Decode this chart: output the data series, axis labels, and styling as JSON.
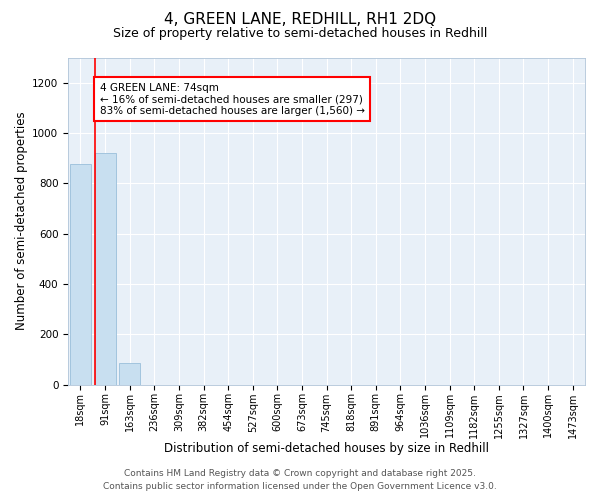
{
  "title": "4, GREEN LANE, REDHILL, RH1 2DQ",
  "subtitle": "Size of property relative to semi-detached houses in Redhill",
  "xlabel": "Distribution of semi-detached houses by size in Redhill",
  "ylabel": "Number of semi-detached properties",
  "categories": [
    "18sqm",
    "91sqm",
    "163sqm",
    "236sqm",
    "309sqm",
    "382sqm",
    "454sqm",
    "527sqm",
    "600sqm",
    "673sqm",
    "745sqm",
    "818sqm",
    "891sqm",
    "964sqm",
    "1036sqm",
    "1109sqm",
    "1182sqm",
    "1255sqm",
    "1327sqm",
    "1400sqm",
    "1473sqm"
  ],
  "values": [
    875,
    920,
    85,
    0,
    0,
    0,
    0,
    0,
    0,
    0,
    0,
    0,
    0,
    0,
    0,
    0,
    0,
    0,
    0,
    0,
    0
  ],
  "bar_color": "#c8dff0",
  "bar_edge_color": "#9abfda",
  "property_line_color": "red",
  "property_line_xidx": 1,
  "annotation_text": "4 GREEN LANE: 74sqm\n← 16% of semi-detached houses are smaller (297)\n83% of semi-detached houses are larger (1,560) →",
  "ylim": [
    0,
    1300
  ],
  "yticks": [
    0,
    200,
    400,
    600,
    800,
    1000,
    1200
  ],
  "background_color": "#e8f0f8",
  "footer_line1": "Contains HM Land Registry data © Crown copyright and database right 2025.",
  "footer_line2": "Contains public sector information licensed under the Open Government Licence v3.0.",
  "title_fontsize": 11,
  "subtitle_fontsize": 9,
  "axis_label_fontsize": 8.5,
  "tick_fontsize": 7,
  "annotation_fontsize": 7.5,
  "footer_fontsize": 6.5
}
